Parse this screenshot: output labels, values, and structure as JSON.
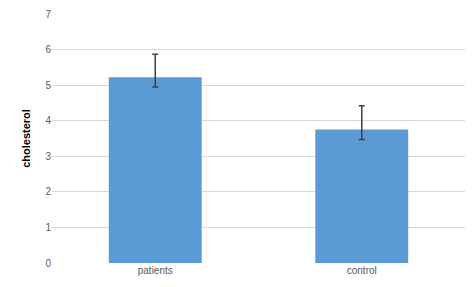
{
  "chart_data": {
    "type": "bar",
    "categories": [
      "patients",
      "control"
    ],
    "values": [
      5.22,
      3.75
    ],
    "error_plus": [
      0.65,
      0.67
    ],
    "error_minus": [
      0.27,
      0.28
    ],
    "color": "#5b9bd5",
    "y_label": "cholesterol",
    "ylim": [
      0,
      7
    ],
    "yticks": [
      0,
      1,
      2,
      3,
      4,
      5,
      6,
      7
    ],
    "grid": true
  }
}
